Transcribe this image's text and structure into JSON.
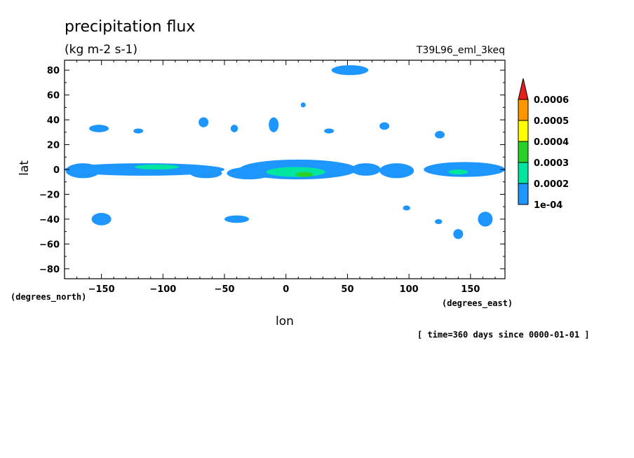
{
  "chart_data": {
    "type": "heatmap",
    "title": "precipitation flux",
    "units": "(kg m-2 s-1)",
    "run_label": "T39L96_eml_3keq",
    "xlabel": "lon",
    "ylabel": "lat",
    "x_units": "(degrees_east)",
    "y_units": "(degrees_north)",
    "time_label": "[ time=360 days since 0000-01-01 ]",
    "xlim": [
      -180,
      178
    ],
    "ylim": [
      -88,
      88
    ],
    "x_ticks": [
      -150,
      -100,
      -50,
      0,
      50,
      100,
      150
    ],
    "x_tick_labels": [
      "−150",
      "−100",
      "−50",
      "0",
      "50",
      "100",
      "150"
    ],
    "y_ticks": [
      80,
      60,
      40,
      20,
      0,
      -20,
      -40,
      -60,
      -80
    ],
    "y_tick_labels": [
      "80",
      "60",
      "40",
      "20",
      "0",
      "−20",
      "−40",
      "−60",
      "−80"
    ],
    "legend": {
      "placement": "right",
      "levels": [
        "1e-04",
        "0.0002",
        "0.0003",
        "0.0004",
        "0.0005",
        "0.0006"
      ],
      "colors": [
        "#1e96ff",
        "#00e6a0",
        "#28d228",
        "#ffff00",
        "#ff9600",
        "#e61e1e"
      ]
    },
    "grid": false,
    "regions": [
      {
        "level": 1,
        "lon": -115,
        "lat": 0,
        "rx": 65,
        "ry": 5
      },
      {
        "level": 1,
        "lon": -165,
        "lat": -1,
        "rx": 14,
        "ry": 6
      },
      {
        "level": 1,
        "lon": -65,
        "lat": -3,
        "rx": 13,
        "ry": 4
      },
      {
        "level": 1,
        "lon": 10,
        "lat": 0,
        "rx": 48,
        "ry": 8
      },
      {
        "level": 1,
        "lon": -30,
        "lat": -3,
        "rx": 18,
        "ry": 5
      },
      {
        "level": 1,
        "lon": 65,
        "lat": 0,
        "rx": 12,
        "ry": 5
      },
      {
        "level": 1,
        "lon": 90,
        "lat": -1,
        "rx": 14,
        "ry": 6
      },
      {
        "level": 1,
        "lon": 145,
        "lat": 0,
        "rx": 33,
        "ry": 6
      },
      {
        "level": 2,
        "lon": -105,
        "lat": 2,
        "rx": 18,
        "ry": 2
      },
      {
        "level": 2,
        "lon": 8,
        "lat": -2,
        "rx": 24,
        "ry": 4
      },
      {
        "level": 2,
        "lon": 140,
        "lat": -2,
        "rx": 8,
        "ry": 2
      },
      {
        "level": 3,
        "lon": 15,
        "lat": -4,
        "rx": 7,
        "ry": 2
      },
      {
        "level": 1,
        "lon": 52,
        "lat": 80,
        "rx": 15,
        "ry": 4
      },
      {
        "level": 1,
        "lon": -152,
        "lat": 33,
        "rx": 8,
        "ry": 3
      },
      {
        "level": 1,
        "lon": -120,
        "lat": 31,
        "rx": 4,
        "ry": 2
      },
      {
        "level": 1,
        "lon": -67,
        "lat": 38,
        "rx": 4,
        "ry": 4
      },
      {
        "level": 1,
        "lon": -42,
        "lat": 33,
        "rx": 3,
        "ry": 3
      },
      {
        "level": 1,
        "lon": -10,
        "lat": 36,
        "rx": 4,
        "ry": 6
      },
      {
        "level": 1,
        "lon": 14,
        "lat": 52,
        "rx": 2,
        "ry": 2
      },
      {
        "level": 1,
        "lon": 35,
        "lat": 31,
        "rx": 4,
        "ry": 2
      },
      {
        "level": 1,
        "lon": 80,
        "lat": 35,
        "rx": 4,
        "ry": 3
      },
      {
        "level": 1,
        "lon": 125,
        "lat": 28,
        "rx": 4,
        "ry": 3
      },
      {
        "level": 1,
        "lon": -150,
        "lat": -40,
        "rx": 8,
        "ry": 5
      },
      {
        "level": 1,
        "lon": -40,
        "lat": -40,
        "rx": 10,
        "ry": 3
      },
      {
        "level": 1,
        "lon": 98,
        "lat": -31,
        "rx": 3,
        "ry": 2
      },
      {
        "level": 1,
        "lon": 124,
        "lat": -42,
        "rx": 3,
        "ry": 2
      },
      {
        "level": 1,
        "lon": 140,
        "lat": -52,
        "rx": 4,
        "ry": 4
      },
      {
        "level": 1,
        "lon": 162,
        "lat": -40,
        "rx": 6,
        "ry": 6
      }
    ]
  }
}
